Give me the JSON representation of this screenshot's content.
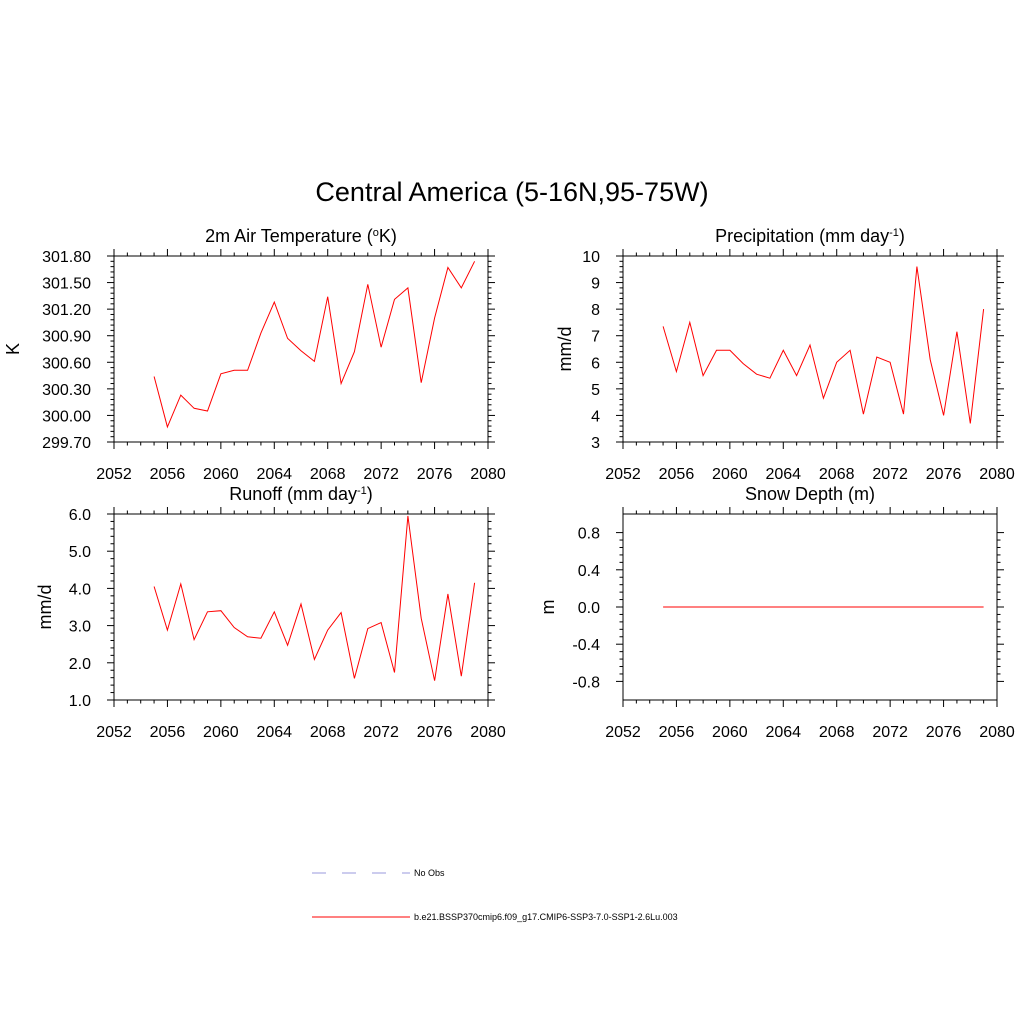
{
  "figure": {
    "title": "Central America (5-16N,95-75W)"
  },
  "colors": {
    "model_line": "#ff0000",
    "obs_line": "#9999dd",
    "axis": "#000000"
  },
  "legend": {
    "entries": [
      {
        "label": "No Obs",
        "style": "dashed",
        "color": "#9999dd"
      },
      {
        "label": "b.e21.BSSP370cmip6.f09_g17.CMIP6-SSP3-7.0-SSP1-2.6Lu.003",
        "style": "solid",
        "color": "#ff0000"
      }
    ]
  },
  "chart_data": [
    {
      "type": "line",
      "title_main": "2m Air Temperature (",
      "title_sup1": "o",
      "title_rest": "K)",
      "ylabel": "K",
      "xlim": [
        2052,
        2080
      ],
      "ylim": [
        299.7,
        301.8
      ],
      "xticks": [
        2052,
        2056,
        2060,
        2064,
        2068,
        2072,
        2076,
        2080
      ],
      "yticks": [
        299.7,
        300.0,
        300.3,
        300.6,
        300.9,
        301.2,
        301.5,
        301.8
      ],
      "ytick_labels": [
        "299.70",
        "300.00",
        "300.30",
        "300.60",
        "300.90",
        "301.20",
        "301.50",
        "301.80"
      ],
      "grid": false,
      "x": [
        2055,
        2056,
        2057,
        2058,
        2059,
        2060,
        2061,
        2062,
        2063,
        2064,
        2065,
        2066,
        2067,
        2068,
        2069,
        2070,
        2071,
        2072,
        2073,
        2074,
        2075,
        2076,
        2077,
        2078,
        2079
      ],
      "values": [
        300.44,
        299.87,
        300.23,
        300.08,
        300.05,
        300.47,
        300.51,
        300.51,
        300.93,
        301.28,
        300.87,
        300.73,
        300.61,
        301.34,
        300.36,
        300.72,
        301.48,
        300.77,
        301.31,
        301.44,
        300.37,
        301.1,
        301.67,
        301.44,
        301.74
      ]
    },
    {
      "type": "line",
      "title_main": "Precipitation (mm day",
      "title_sup1": "-1",
      "title_rest": ")",
      "ylabel": "mm/d",
      "xlim": [
        2052,
        2080
      ],
      "ylim": [
        3,
        10
      ],
      "xticks": [
        2052,
        2056,
        2060,
        2064,
        2068,
        2072,
        2076,
        2080
      ],
      "yticks": [
        3,
        4,
        5,
        6,
        7,
        8,
        9,
        10
      ],
      "ytick_labels": [
        "3",
        "4",
        "5",
        "6",
        "7",
        "8",
        "9",
        "10"
      ],
      "grid": false,
      "x": [
        2055,
        2056,
        2057,
        2058,
        2059,
        2060,
        2061,
        2062,
        2063,
        2064,
        2065,
        2066,
        2067,
        2068,
        2069,
        2070,
        2071,
        2072,
        2073,
        2074,
        2075,
        2076,
        2077,
        2078,
        2079
      ],
      "values": [
        7.35,
        5.65,
        7.5,
        5.5,
        6.45,
        6.45,
        5.95,
        5.55,
        5.4,
        6.45,
        5.5,
        6.65,
        4.65,
        6.0,
        6.45,
        4.05,
        6.2,
        6.0,
        4.05,
        9.6,
        6.1,
        4.0,
        7.15,
        3.7,
        8.0
      ]
    },
    {
      "type": "line",
      "title_main": "Runoff (mm day",
      "title_sup1": "-1",
      "title_rest": ")",
      "ylabel": "mm/d",
      "xlim": [
        2052,
        2080
      ],
      "ylim": [
        1.0,
        6.0
      ],
      "xticks": [
        2052,
        2056,
        2060,
        2064,
        2068,
        2072,
        2076,
        2080
      ],
      "yticks": [
        1.0,
        2.0,
        3.0,
        4.0,
        5.0,
        6.0
      ],
      "ytick_labels": [
        "1.0",
        "2.0",
        "3.0",
        "4.0",
        "5.0",
        "6.0"
      ],
      "grid": false,
      "x": [
        2055,
        2056,
        2057,
        2058,
        2059,
        2060,
        2061,
        2062,
        2063,
        2064,
        2065,
        2066,
        2067,
        2068,
        2069,
        2070,
        2071,
        2072,
        2073,
        2074,
        2075,
        2076,
        2077,
        2078,
        2079
      ],
      "values": [
        4.05,
        2.88,
        4.12,
        2.62,
        3.37,
        3.4,
        2.95,
        2.7,
        2.66,
        3.37,
        2.47,
        3.58,
        2.09,
        2.88,
        3.35,
        1.58,
        2.92,
        3.08,
        1.74,
        5.95,
        3.2,
        1.52,
        3.85,
        1.64,
        4.15
      ]
    },
    {
      "type": "line",
      "title_main": "Snow Depth (m)",
      "title_sup1": "",
      "title_rest": "",
      "ylabel": "m",
      "xlim": [
        2052,
        2080
      ],
      "ylim": [
        -1.0,
        1.0
      ],
      "xticks": [
        2052,
        2056,
        2060,
        2064,
        2068,
        2072,
        2076,
        2080
      ],
      "yticks": [
        -0.8,
        -0.4,
        0.0,
        0.4,
        0.8
      ],
      "ytick_labels": [
        "-0.8",
        "-0.4",
        "0.0",
        "0.4",
        "0.8"
      ],
      "grid": false,
      "x": [
        2055,
        2056,
        2057,
        2058,
        2059,
        2060,
        2061,
        2062,
        2063,
        2064,
        2065,
        2066,
        2067,
        2068,
        2069,
        2070,
        2071,
        2072,
        2073,
        2074,
        2075,
        2076,
        2077,
        2078,
        2079
      ],
      "values": [
        0,
        0,
        0,
        0,
        0,
        0,
        0,
        0,
        0,
        0,
        0,
        0,
        0,
        0,
        0,
        0,
        0,
        0,
        0,
        0,
        0,
        0,
        0,
        0,
        0
      ]
    }
  ]
}
